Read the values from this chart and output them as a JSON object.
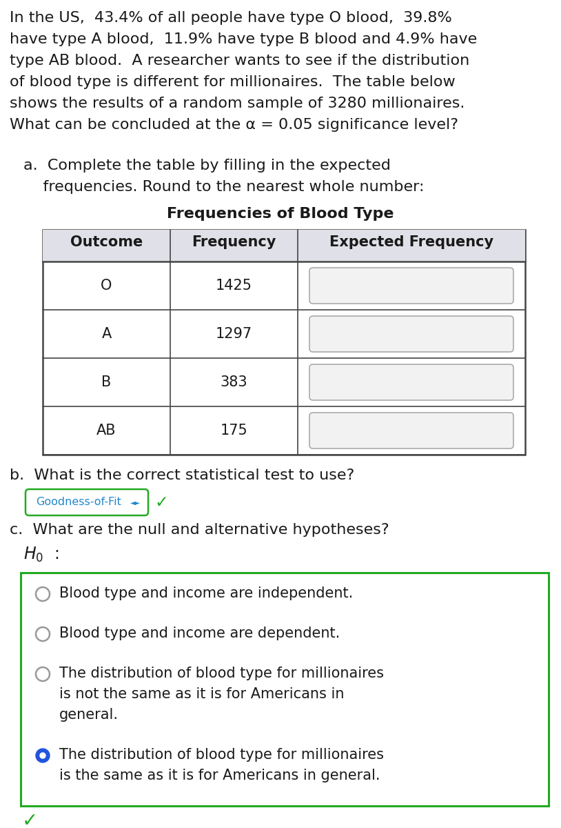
{
  "intro_text_lines": [
    "In the US,  43.4% of all people have type O blood,  39.8%",
    "have type A blood,  11.9% have type B blood and 4.9% have",
    "type AB blood.  A researcher wants to see if the distribution",
    "of blood type is different for millionaires.  The table below",
    "shows the results of a random sample of 3280 millionaires.",
    "What can be concluded at the α = 0.05 significance level?"
  ],
  "part_a_lines": [
    "a.  Complete the table by filling in the expected",
    "    frequencies. Round to the nearest whole number:"
  ],
  "table_title": "Frequencies of Blood Type",
  "table_headers": [
    "Outcome",
    "Frequency",
    "Expected Frequency"
  ],
  "table_rows": [
    [
      "O",
      "1425"
    ],
    [
      "A",
      "1297"
    ],
    [
      "B",
      "383"
    ],
    [
      "AB",
      "175"
    ]
  ],
  "part_b_text": "b.  What is the correct statistical test to use?",
  "goodness_label": "Goodness-of-Fit",
  "part_c_text": "c.  What are the null and alternative hypotheses?",
  "h0_label": "H",
  "radio_options": [
    {
      "lines": [
        "Blood type and income are independent."
      ],
      "selected": false
    },
    {
      "lines": [
        "Blood type and income are dependent."
      ],
      "selected": false
    },
    {
      "lines": [
        "The distribution of blood type for millionaires",
        "is not the same as it is for Americans in",
        "general."
      ],
      "selected": false
    },
    {
      "lines": [
        "The distribution of blood type for millionaires",
        "is the same as it is for Americans in general."
      ],
      "selected": true
    }
  ],
  "bg_color": "#ffffff",
  "text_color": "#1a1a1a",
  "table_header_bg": "#e0e0e8",
  "table_border_color": "#444444",
  "input_box_color": "#f2f2f2",
  "input_box_border": "#aaaaaa",
  "green_border_color": "#22aa22",
  "goodness_text_color": "#2288cc",
  "goodness_border_color": "#22aa22",
  "selected_radio_color": "#2255dd",
  "unselected_radio_color": "#999999",
  "checkmark_color": "#22aa22",
  "fig_width": 8.14,
  "fig_height": 12.0,
  "dpi": 100
}
